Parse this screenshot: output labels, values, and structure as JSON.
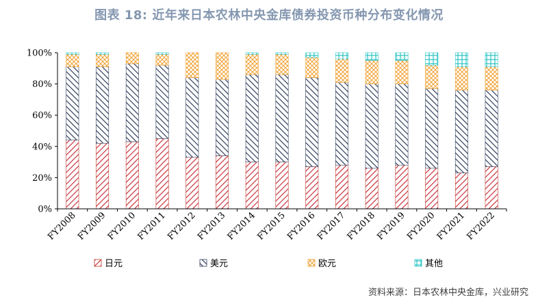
{
  "title": "图表 18: 近年来日本农林中央金库债券投资币种分布变化情况",
  "source": "资料来源：日本农林中央金库，兴业研究",
  "chart_data": {
    "type": "bar",
    "stacked": true,
    "categories": [
      "FY2008",
      "FY2009",
      "FY2010",
      "FY2011",
      "FY2012",
      "FY2013",
      "FY2014",
      "FY2015",
      "FY2016",
      "FY2017",
      "FY2018",
      "FY2019",
      "FY2020",
      "FY2021",
      "FY2022"
    ],
    "series": [
      {
        "name": "日元",
        "color": "#c0392b",
        "pattern": "diagonal-hatch",
        "values": [
          44,
          42,
          43,
          45,
          33,
          34,
          30,
          30,
          27,
          28,
          26,
          28,
          26,
          23,
          27
        ]
      },
      {
        "name": "美元",
        "color": "#2f3e5c",
        "pattern": "diagonal-hatch",
        "values": [
          47,
          49,
          50,
          47,
          51,
          49,
          56,
          56,
          57,
          53,
          54,
          52,
          51,
          53,
          49
        ]
      },
      {
        "name": "欧元",
        "color": "#f0a030",
        "pattern": "crosshatch",
        "values": [
          8,
          8,
          7,
          7,
          16,
          17,
          13,
          13,
          13,
          15,
          15,
          15,
          15,
          15,
          15
        ]
      },
      {
        "name": "其他",
        "color": "#2ec4c4",
        "pattern": "grid",
        "values": [
          1,
          1,
          0,
          1,
          0,
          0,
          1,
          1,
          3,
          4,
          5,
          5,
          8,
          9,
          9
        ]
      }
    ],
    "yticks": [
      "0%",
      "20%",
      "40%",
      "60%",
      "80%",
      "100%"
    ],
    "ylim": [
      0,
      100
    ],
    "legend_position": "bottom",
    "grid": false
  }
}
